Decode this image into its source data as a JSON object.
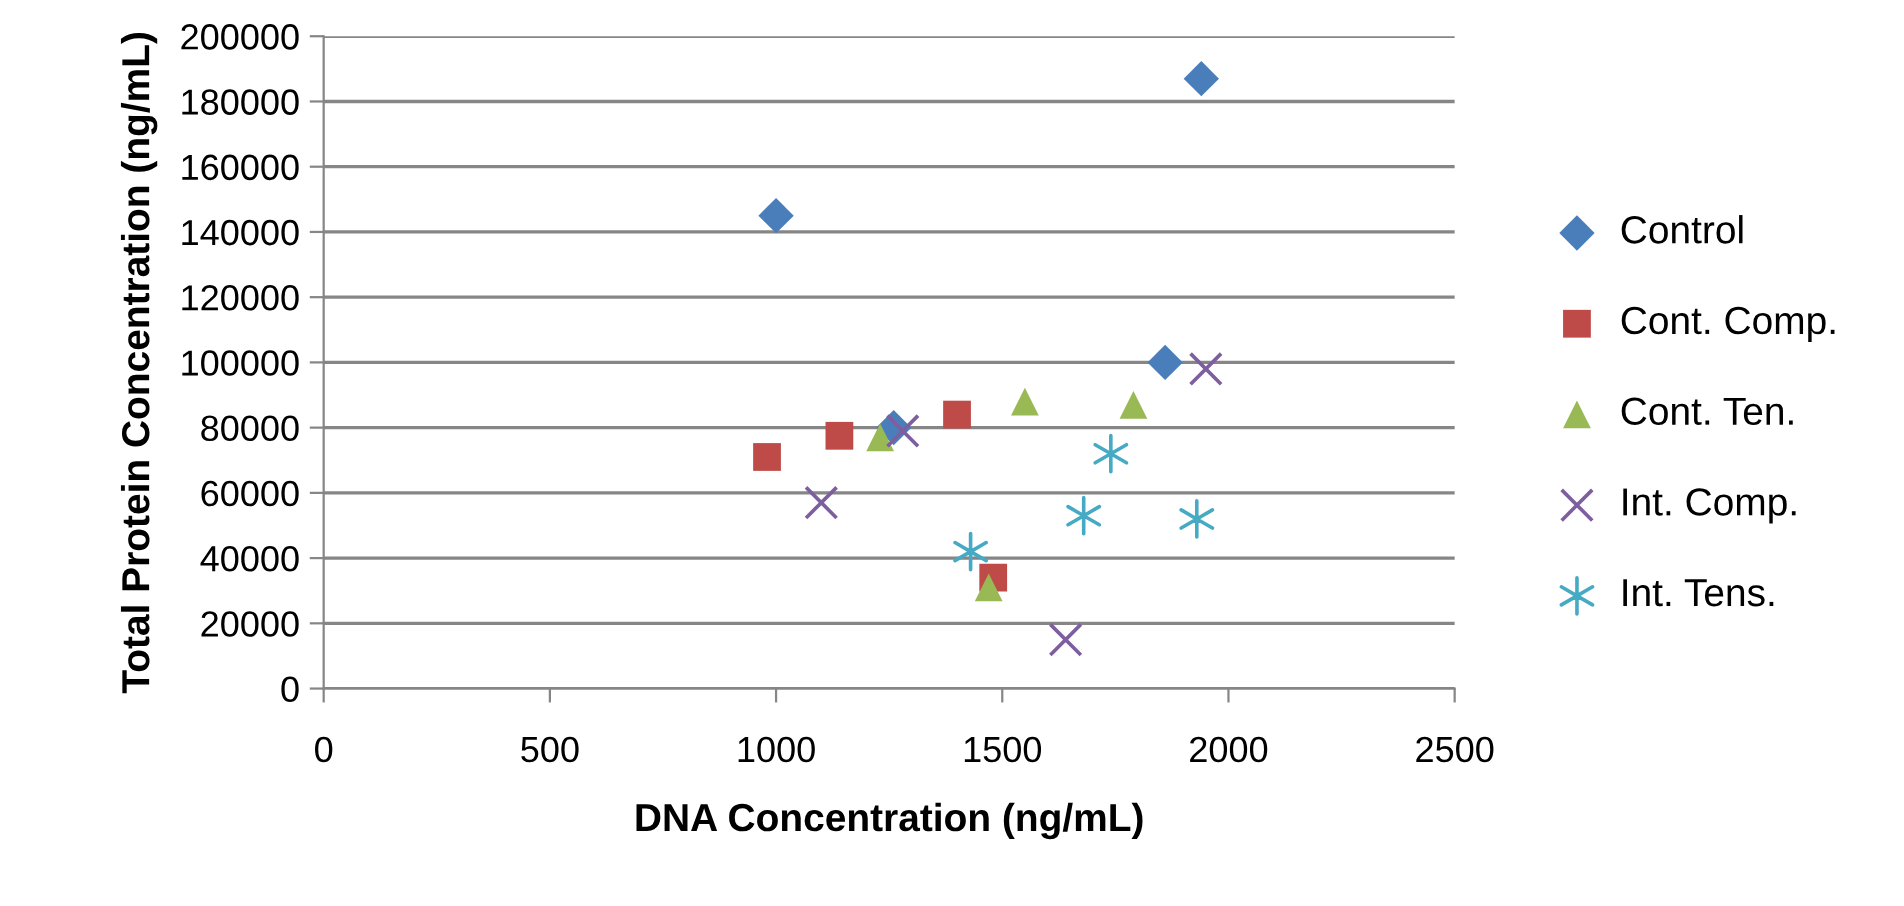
{
  "chart_data": {
    "type": "scatter",
    "xlabel": "DNA Concentration (ng/mL)",
    "ylabel": "Total Protein Concentration (ng/mL)",
    "xlim": [
      0,
      2500
    ],
    "xticks": [
      0,
      500,
      1000,
      1500,
      2000,
      2500
    ],
    "ylim": [
      0,
      200000
    ],
    "yticks": [
      0,
      20000,
      40000,
      60000,
      80000,
      100000,
      120000,
      140000,
      160000,
      180000,
      200000
    ],
    "grid": "y",
    "legend": "right",
    "series": [
      {
        "name": "Control",
        "color": "#4a7ebb",
        "marker": "diamond",
        "x": [
          1000,
          1940,
          1860,
          1260
        ],
        "values": [
          145000,
          187000,
          100000,
          80000
        ]
      },
      {
        "name": "Cont. Comp.",
        "color": "#be4b48",
        "marker": "square",
        "x": [
          980,
          1140,
          1400,
          1480
        ],
        "values": [
          71000,
          77500,
          84000,
          34000
        ]
      },
      {
        "name": "Cont. Ten.",
        "color": "#98b954",
        "marker": "triangle",
        "x": [
          1230,
          1550,
          1790,
          1470
        ],
        "values": [
          77000,
          88000,
          87000,
          31000
        ]
      },
      {
        "name": "Int. Comp.",
        "color": "#7d5fa0",
        "marker": "cross",
        "x": [
          1100,
          1280,
          1950,
          1640
        ],
        "values": [
          57000,
          79000,
          98000,
          15000
        ]
      },
      {
        "name": "Int. Tens.",
        "color": "#46aac5",
        "x": [
          1430,
          1680,
          1740,
          1930
        ],
        "values": [
          42000,
          53000,
          72000,
          52000
        ]
      }
    ]
  }
}
